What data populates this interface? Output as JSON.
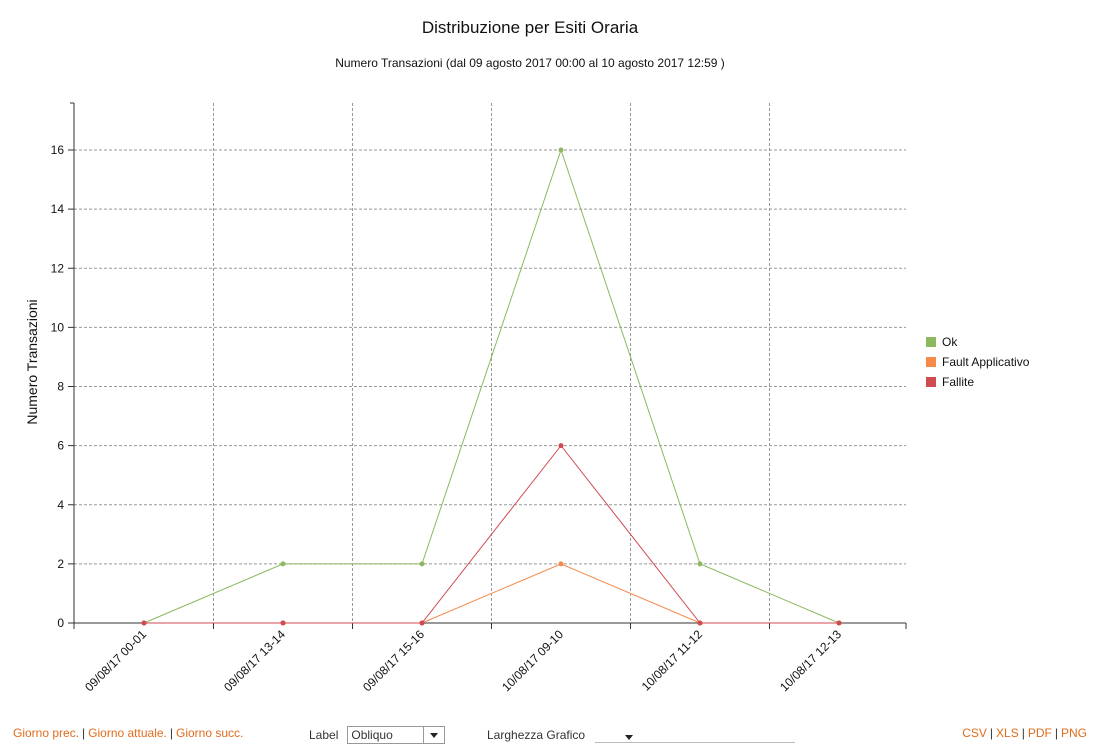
{
  "chart_data": {
    "type": "line",
    "title": "Distribuzione per Esiti Oraria",
    "subtitle": "Numero Transazioni (dal 09 agosto 2017 00:00 al 10 agosto 2017 12:59 )",
    "xlabel": "",
    "ylabel": "Numero Transazioni",
    "categories": [
      "09/08/17 00-01",
      "09/08/17 13-14",
      "09/08/17 15-16",
      "10/08/17 09-10",
      "10/08/17 11-12",
      "10/08/17 12-13"
    ],
    "ylim": [
      0,
      16
    ],
    "yticks": [
      0,
      2,
      4,
      6,
      8,
      10,
      12,
      14,
      16
    ],
    "grid": true,
    "legend_position": "right",
    "series": [
      {
        "name": "Ok",
        "color": "#8cb860",
        "values": [
          0,
          2,
          2,
          16,
          2,
          0
        ]
      },
      {
        "name": "Fault Applicativo",
        "color": "#f5894a",
        "values": [
          0,
          0,
          0,
          2,
          0,
          0
        ]
      },
      {
        "name": "Fallite",
        "color": "#d04a4f",
        "values": [
          0,
          0,
          0,
          6,
          0,
          0
        ]
      }
    ]
  },
  "footer": {
    "prev_day": "Giorno prec.",
    "current_day": "Giorno attuale.",
    "next_day": "Giorno succ.",
    "separator": "|",
    "label_text": "Label",
    "label_value": "Obliquo",
    "width_text": "Larghezza Grafico",
    "width_value": "",
    "export": [
      "CSV",
      "XLS",
      "PDF",
      "PNG"
    ]
  }
}
